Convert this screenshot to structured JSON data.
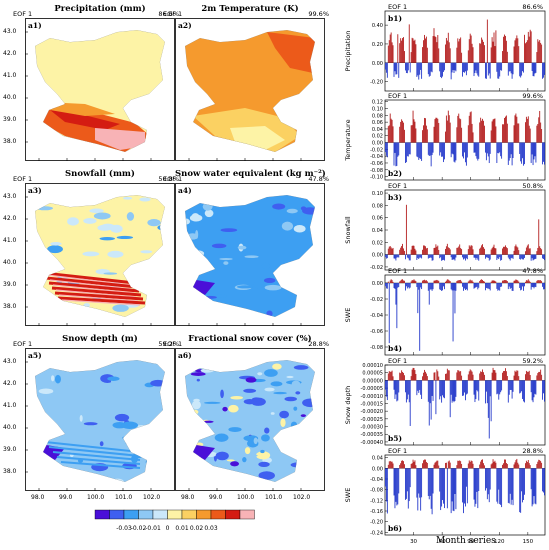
{
  "colors": {
    "scale": [
      "#4a0fd8",
      "#3f5ff0",
      "#3d9ff2",
      "#8ec8f4",
      "#cbe8fa",
      "#fdf3a6",
      "#fbd162",
      "#f59a2e",
      "#ec5a1a",
      "#d41c12",
      "#f8b3b6"
    ],
    "positive": "#b01414",
    "negative": "#1a30c8"
  },
  "maps": [
    {
      "id": "a1)",
      "title": "Precipitation (mm)",
      "eof": "EOF 1",
      "pct": "86.6%",
      "base_color": "#fdf3a6"
    },
    {
      "id": "a2)",
      "title": "2m Temperature (K)",
      "eof": "EOF 1",
      "pct": "99.6%",
      "base_color": "#f59a2e"
    },
    {
      "id": "a3)",
      "title": "Snowfall (mm)",
      "eof": "EOF 1",
      "pct": "50.8%",
      "base_color": "#fdf3a6"
    },
    {
      "id": "a4)",
      "title": "Snow water equivalent (kg m⁻²)",
      "eof": "EOF 1",
      "pct": "47.8%",
      "base_color": "#3d9ff2"
    },
    {
      "id": "a5)",
      "title": "Snow depth (m)",
      "eof": "EOF 1",
      "pct": "59.2%",
      "base_color": "#8ec8f4"
    },
    {
      "id": "a6)",
      "title": "Fractional snow cover (%)",
      "eof": "EOF 1",
      "pct": "28.8%",
      "base_color": "#8ec8f4"
    }
  ],
  "map_axes": {
    "lat_ticks": [
      "43.0",
      "42.0",
      "41.0",
      "40.0",
      "39.0",
      "38.0"
    ],
    "lon_ticks": [
      "98.0",
      "99.0",
      "100.0",
      "101.0",
      "102.0"
    ]
  },
  "colorbar": {
    "labels": [
      "-0.03",
      "-0.02",
      "-0.01",
      "0",
      "0.01",
      "0.02",
      "0.03"
    ]
  },
  "chart_data": [
    {
      "type": "bar",
      "id": "b1)",
      "eof": "EOF 1",
      "pct": "86.6%",
      "ylabel": "Precipitation",
      "yticks": [
        "0.40",
        "0.20",
        "0.00",
        "-0.20"
      ],
      "ylim": [
        -0.3,
        0.55
      ],
      "pos": 0.28,
      "neg": -0.18,
      "spikes": [
        0.5,
        0.45,
        0.35
      ]
    },
    {
      "type": "bar",
      "id": "b2)",
      "eof": "EOF 1",
      "pct": "99.6%",
      "ylabel": "Temperature",
      "yticks": [
        "0.12",
        "0.10",
        "0.08",
        "0.06",
        "0.04",
        "0.02",
        "0.00",
        "-0.02",
        "-0.04",
        "-0.06",
        "-0.08",
        "-0.10"
      ],
      "ylim": [
        -0.11,
        0.125
      ],
      "pos": 0.08,
      "neg": -0.07,
      "spikes": []
    },
    {
      "type": "bar",
      "id": "b3)",
      "eof": "EOF 1",
      "pct": "50.8%",
      "ylabel": "Snowfall",
      "yticks": [
        "0.10",
        "0.08",
        "0.06",
        "0.04",
        "0.02",
        "0.00",
        "-0.02"
      ],
      "ylim": [
        -0.025,
        0.105
      ],
      "pos": 0.015,
      "neg": -0.01,
      "spikes": [
        0.09,
        0.075,
        0.065
      ]
    },
    {
      "type": "bar",
      "id": "b4)",
      "eof": "EOF 1",
      "pct": "47.8%",
      "ylabel": "SWE",
      "yticks": [
        "0.00",
        "-0.02",
        "-0.04",
        "-0.06",
        "-0.08"
      ],
      "ylim": [
        -0.09,
        0.01
      ],
      "pos": 0.004,
      "neg": -0.01,
      "spikes": [
        -0.085,
        -0.045
      ]
    },
    {
      "type": "bar",
      "id": "b5)",
      "eof": "EOF 1",
      "pct": "59.2%",
      "ylabel": "Snow depth",
      "yticks": [
        "0.00010",
        "0.00005",
        "0.00000",
        "-0.00005",
        "-0.00010",
        "-0.00015",
        "-0.00020",
        "-0.00025",
        "-0.00030",
        "-0.00035",
        "-0.00040"
      ],
      "ylim": [
        -0.00042,
        0.0001
      ],
      "pos": 7e-05,
      "neg": -0.00015,
      "spikes": [
        -0.00038,
        -0.00032
      ]
    },
    {
      "type": "bar",
      "id": "b6)",
      "eof": "EOF 1",
      "pct": "28.8%",
      "ylabel": "SWE",
      "yticks": [
        "0.04",
        "0.00",
        "-0.04",
        "-0.08",
        "-0.12",
        "-0.16",
        "-0.20",
        "-0.24"
      ],
      "ylim": [
        -0.25,
        0.05
      ],
      "pos": 0.03,
      "neg": -0.17,
      "spikes": [
        -0.2
      ]
    }
  ],
  "time_axis": {
    "xlabel": "Month series",
    "xticks": [
      30,
      60,
      90,
      120,
      150
    ],
    "n": 168
  }
}
